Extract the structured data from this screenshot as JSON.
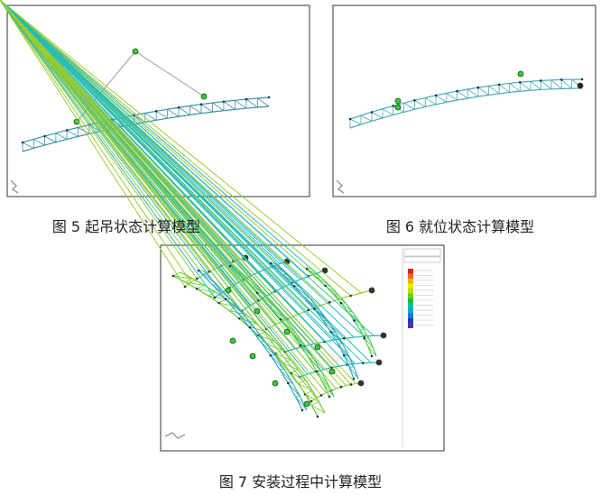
{
  "figures": [
    {
      "caption": "图 5   起吊状态计算模型"
    },
    {
      "caption": "图 6   就位状态计算模型"
    },
    {
      "caption": "图 7   安装过程中计算模型"
    }
  ]
}
